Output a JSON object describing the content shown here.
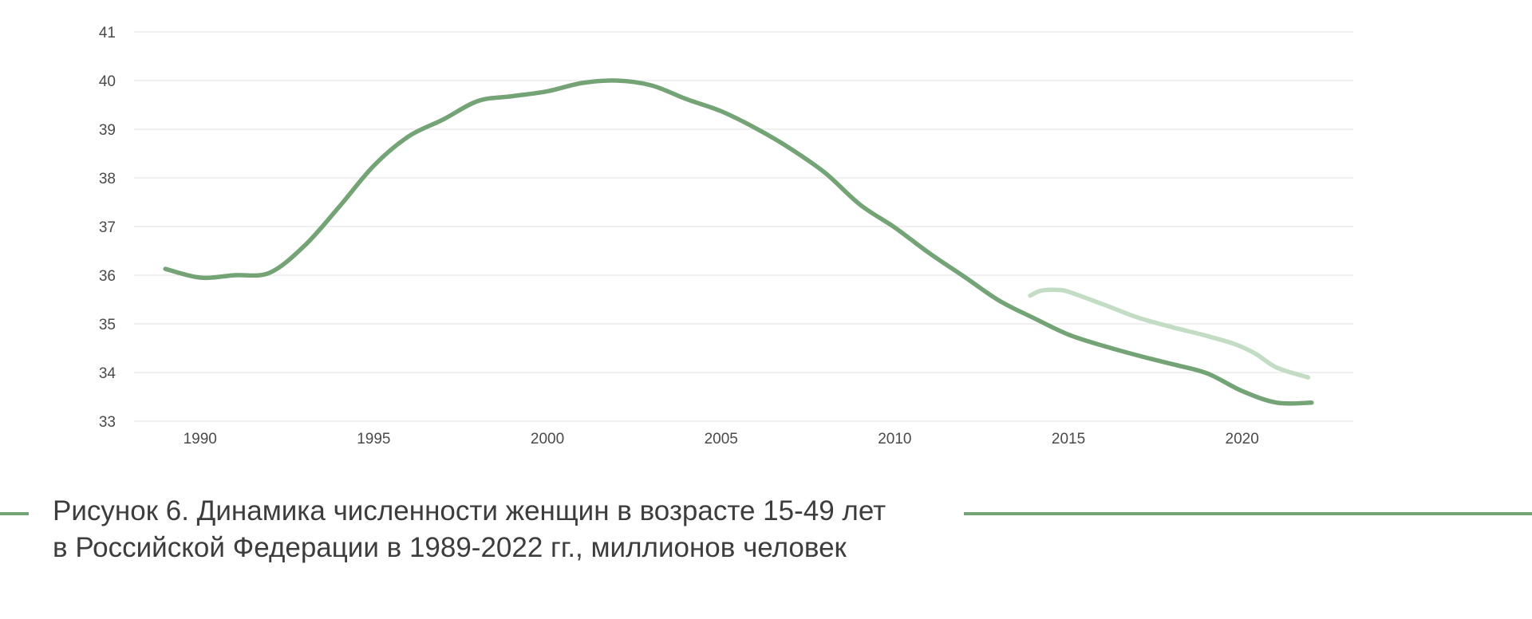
{
  "chart_data": {
    "type": "line",
    "x_ticks": [
      "1990",
      "1995",
      "2000",
      "2005",
      "2010",
      "2015",
      "2020"
    ],
    "y_ticks": [
      "33",
      "34",
      "35",
      "36",
      "37",
      "38",
      "39",
      "40",
      "41"
    ],
    "xlim": [
      1988.1,
      2023.2
    ],
    "ylim": [
      33,
      41
    ],
    "grid": true,
    "series": [
      {
        "color": "#74a376",
        "x": [
          1989,
          1990,
          1991,
          1992,
          1993,
          1994,
          1995,
          1996,
          1997,
          1998,
          1999,
          2000,
          2001,
          2002,
          2003,
          2004,
          2005,
          2006,
          2007,
          2008,
          2009,
          2010,
          2011,
          2012,
          2013,
          2014,
          2015,
          2016,
          2017,
          2018,
          2019,
          2020,
          2021,
          2022
        ],
        "y": [
          36.13,
          35.95,
          36.0,
          36.05,
          36.6,
          37.4,
          38.25,
          38.85,
          39.2,
          39.58,
          39.68,
          39.78,
          39.95,
          40.0,
          39.9,
          39.62,
          39.37,
          39.02,
          38.6,
          38.1,
          37.45,
          36.98,
          36.45,
          35.97,
          35.48,
          35.12,
          34.78,
          34.55,
          34.35,
          34.17,
          33.98,
          33.62,
          33.38,
          33.38
        ]
      },
      {
        "color": "#c3dcc4",
        "x": [
          2013.9,
          2014.2,
          2014.6,
          2015,
          2016,
          2017,
          2018,
          2019,
          2019.8,
          2020.4,
          2021,
          2021.9
        ],
        "y": [
          35.58,
          35.68,
          35.7,
          35.66,
          35.4,
          35.13,
          34.93,
          34.75,
          34.58,
          34.38,
          34.1,
          33.9
        ]
      }
    ]
  },
  "caption": {
    "line1": "Рисунок 6. Динамика численности женщин в возрасте 15-49 лет",
    "line2": "в Российской Федерации в 1989-2022 гг., миллионов человек"
  }
}
